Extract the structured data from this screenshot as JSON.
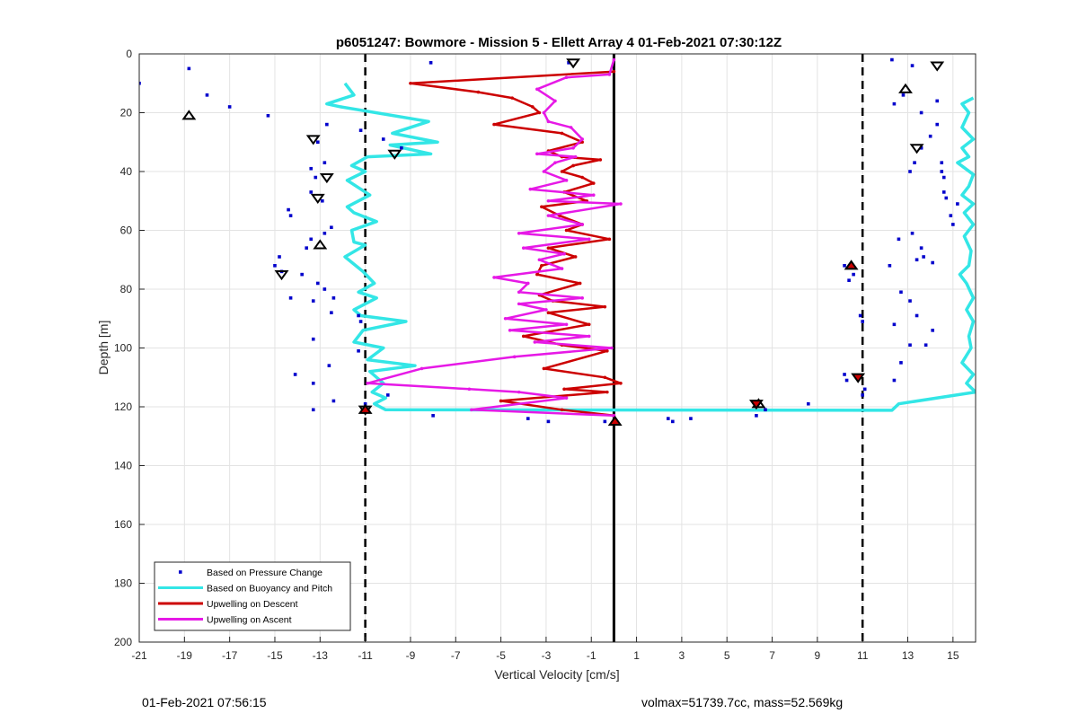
{
  "chart_data": {
    "type": "line",
    "title": "p6051247: Bowmore - Mission 5 - Ellett Array 4 01-Feb-2021 07:30:12Z",
    "xlabel": "Vertical Velocity [cm/s]",
    "ylabel": "Depth [m]",
    "xlim": [
      -21,
      16
    ],
    "ylim": [
      0,
      200
    ],
    "y_reversed": true,
    "grid": true,
    "xticks": [
      -21,
      -19,
      -17,
      -15,
      -13,
      -11,
      -9,
      -7,
      -5,
      -3,
      -1,
      1,
      3,
      5,
      7,
      9,
      11,
      13,
      15
    ],
    "yticks": [
      0,
      20,
      40,
      60,
      80,
      100,
      120,
      140,
      160,
      180,
      200
    ],
    "legend_position": "bottom-left",
    "reference_lines": [
      {
        "x": -11,
        "style": "dashed",
        "color": "#000000"
      },
      {
        "x": 0,
        "style": "solid",
        "color": "#000000"
      },
      {
        "x": 11,
        "style": "dashed",
        "color": "#000000"
      }
    ],
    "series": [
      {
        "name": "Based on Pressure Change",
        "kind": "scatter",
        "color": "#0000cc",
        "points": [
          [
            -21,
            10
          ],
          [
            -18.8,
            5
          ],
          [
            -18,
            14
          ],
          [
            -17,
            18
          ],
          [
            -15.3,
            21
          ],
          [
            -11.2,
            26
          ],
          [
            -10.2,
            29
          ],
          [
            -9.4,
            32
          ],
          [
            -12.7,
            24
          ],
          [
            -13.1,
            30
          ],
          [
            -12.8,
            37
          ],
          [
            -13.4,
            39
          ],
          [
            -13.2,
            42
          ],
          [
            -13.4,
            47
          ],
          [
            -12.9,
            50
          ],
          [
            -14.4,
            53
          ],
          [
            -14.3,
            55
          ],
          [
            -12.5,
            59
          ],
          [
            -12.8,
            61
          ],
          [
            -13.4,
            63
          ],
          [
            -13.6,
            66
          ],
          [
            -14.8,
            69
          ],
          [
            -15,
            72
          ],
          [
            -14.7,
            74
          ],
          [
            -13.8,
            75
          ],
          [
            -13.1,
            78
          ],
          [
            -12.8,
            80
          ],
          [
            -14.3,
            83
          ],
          [
            -12.4,
            83
          ],
          [
            -13.3,
            84
          ],
          [
            -12.5,
            88
          ],
          [
            -11.3,
            89
          ],
          [
            -11.2,
            91
          ],
          [
            -13.3,
            97
          ],
          [
            -11.3,
            101
          ],
          [
            -12.6,
            106
          ],
          [
            -13.3,
            112
          ],
          [
            -14.1,
            109
          ],
          [
            -10,
            116
          ],
          [
            -12.4,
            118
          ],
          [
            -13.3,
            121
          ],
          [
            -11,
            119
          ],
          [
            -8,
            123
          ],
          [
            -2.9,
            125
          ],
          [
            -3.8,
            124
          ],
          [
            -0.4,
            125
          ],
          [
            2.4,
            124
          ],
          [
            2.6,
            125
          ],
          [
            3.4,
            124
          ],
          [
            6.3,
            123
          ],
          [
            6.7,
            121
          ],
          [
            8.6,
            119
          ],
          [
            10.2,
            72
          ],
          [
            10.6,
            75
          ],
          [
            10.4,
            77
          ],
          [
            10.3,
            111
          ],
          [
            10.2,
            109
          ],
          [
            11,
            91
          ],
          [
            10.9,
            89
          ],
          [
            11.1,
            114
          ],
          [
            11,
            116
          ],
          [
            -8.1,
            3
          ],
          [
            -2,
            3
          ],
          [
            12.3,
            2
          ],
          [
            13.2,
            4
          ],
          [
            12.8,
            14
          ],
          [
            12.4,
            17
          ],
          [
            13.6,
            20
          ],
          [
            14.3,
            24
          ],
          [
            14,
            28
          ],
          [
            13.6,
            32
          ],
          [
            13.3,
            37
          ],
          [
            13.1,
            40
          ],
          [
            14.5,
            37
          ],
          [
            14.5,
            40
          ],
          [
            14.6,
            42
          ],
          [
            14.6,
            47
          ],
          [
            14.7,
            49
          ],
          [
            15.2,
            51
          ],
          [
            14.9,
            55
          ],
          [
            15,
            58
          ],
          [
            13.2,
            61
          ],
          [
            12.6,
            63
          ],
          [
            13.6,
            66
          ],
          [
            13.7,
            69
          ],
          [
            13.4,
            70
          ],
          [
            12.2,
            72
          ],
          [
            14.1,
            71
          ],
          [
            12.7,
            81
          ],
          [
            13.1,
            84
          ],
          [
            13.4,
            89
          ],
          [
            12.4,
            92
          ],
          [
            14.1,
            94
          ],
          [
            13.8,
            99
          ],
          [
            13.1,
            99
          ],
          [
            12.7,
            105
          ],
          [
            12.4,
            111
          ],
          [
            14.3,
            16
          ]
        ]
      },
      {
        "name": "Based on Buoyancy and Pitch",
        "kind": "line",
        "color": "#33e6e6",
        "points": [
          [
            -11.9,
            10
          ],
          [
            -11.5,
            14
          ],
          [
            -12.7,
            17
          ],
          [
            -12.1,
            18
          ],
          [
            -8.2,
            23
          ],
          [
            -9.8,
            27
          ],
          [
            -7.8,
            30
          ],
          [
            -9.9,
            31
          ],
          [
            -8.1,
            34
          ],
          [
            -10.9,
            35
          ],
          [
            -11.6,
            38
          ],
          [
            -11,
            40
          ],
          [
            -11.8,
            43
          ],
          [
            -10.8,
            48
          ],
          [
            -11.8,
            52
          ],
          [
            -11.5,
            54
          ],
          [
            -10.5,
            57
          ],
          [
            -11.6,
            60
          ],
          [
            -11.5,
            64
          ],
          [
            -11,
            65
          ],
          [
            -11.9,
            69
          ],
          [
            -11.1,
            74
          ],
          [
            -10.6,
            78
          ],
          [
            -11.3,
            81
          ],
          [
            -10.5,
            83
          ],
          [
            -11.5,
            87
          ],
          [
            -11.2,
            89
          ],
          [
            -9.2,
            91
          ],
          [
            -11.1,
            94
          ],
          [
            -11.5,
            98
          ],
          [
            -10.2,
            100
          ],
          [
            -10.9,
            104
          ],
          [
            -8.8,
            106
          ],
          [
            -10.8,
            108
          ],
          [
            -10.2,
            112
          ],
          [
            -10.7,
            115
          ],
          [
            -10.1,
            117
          ],
          [
            -10.6,
            119
          ],
          [
            -10.1,
            121
          ],
          [
            12.3,
            121.2
          ],
          [
            12.6,
            119
          ],
          [
            16,
            115
          ],
          [
            15.6,
            112
          ],
          [
            15.9,
            109
          ],
          [
            15.4,
            105
          ],
          [
            15.8,
            100
          ],
          [
            15.7,
            96
          ],
          [
            15.9,
            91
          ],
          [
            15.6,
            87
          ],
          [
            15.9,
            83
          ],
          [
            15.6,
            78
          ],
          [
            15.3,
            75
          ],
          [
            15.7,
            72
          ],
          [
            15.8,
            67
          ],
          [
            15.5,
            62
          ],
          [
            15.9,
            58
          ],
          [
            15.5,
            54
          ],
          [
            15.9,
            51
          ],
          [
            15.4,
            48
          ],
          [
            15.7,
            45
          ],
          [
            15.9,
            41
          ],
          [
            15.2,
            37
          ],
          [
            15.7,
            35
          ],
          [
            15.4,
            32
          ],
          [
            15.9,
            29
          ],
          [
            15.4,
            25
          ],
          [
            15.7,
            20
          ],
          [
            15.4,
            17
          ],
          [
            15.9,
            15
          ]
        ]
      },
      {
        "name": "Upwelling on Descent",
        "kind": "line",
        "color": "#cc0000",
        "points": [
          [
            0,
            6
          ],
          [
            -9,
            10
          ],
          [
            -6,
            13
          ],
          [
            -4.5,
            15
          ],
          [
            -3.6,
            18
          ],
          [
            -3.3,
            20
          ],
          [
            -5.3,
            24
          ],
          [
            -2.3,
            27
          ],
          [
            -1.4,
            30
          ],
          [
            -2.9,
            33
          ],
          [
            -2.3,
            35
          ],
          [
            -0.6,
            36
          ],
          [
            -1.8,
            38
          ],
          [
            -2.3,
            40
          ],
          [
            -1.4,
            42
          ],
          [
            -0.9,
            44
          ],
          [
            -2.2,
            47
          ],
          [
            -1.2,
            50
          ],
          [
            -3.2,
            52
          ],
          [
            -2.4,
            55
          ],
          [
            -1.4,
            58
          ],
          [
            -2.1,
            60
          ],
          [
            -0.2,
            63
          ],
          [
            -2.9,
            66
          ],
          [
            -1.7,
            69
          ],
          [
            -3.2,
            72
          ],
          [
            -3.4,
            75
          ],
          [
            -1.5,
            78
          ],
          [
            -3.3,
            82
          ],
          [
            -2.7,
            84
          ],
          [
            -0.4,
            86
          ],
          [
            -2.9,
            88
          ],
          [
            -1.1,
            92
          ],
          [
            -4,
            96
          ],
          [
            -2.3,
            99
          ],
          [
            -0.3,
            101
          ],
          [
            -3.1,
            107
          ],
          [
            -0.4,
            110
          ],
          [
            0.3,
            112
          ],
          [
            -2.2,
            114
          ],
          [
            -0.3,
            115
          ],
          [
            -5,
            118
          ],
          [
            -2.3,
            121
          ],
          [
            0,
            123
          ]
        ]
      },
      {
        "name": "Upwelling on Ascent",
        "kind": "line",
        "color": "#e619e6",
        "points": [
          [
            0,
            2
          ],
          [
            -0.2,
            7
          ],
          [
            -2.1,
            8
          ],
          [
            -3.4,
            12
          ],
          [
            -2.6,
            16
          ],
          [
            -3.1,
            20
          ],
          [
            -2.9,
            23
          ],
          [
            -1.9,
            25
          ],
          [
            -1.4,
            29
          ],
          [
            -1.8,
            32
          ],
          [
            -3.4,
            34
          ],
          [
            -1.7,
            35
          ],
          [
            -2.6,
            37
          ],
          [
            -3.1,
            40
          ],
          [
            -2.1,
            43
          ],
          [
            -3.7,
            46
          ],
          [
            -0.9,
            48
          ],
          [
            -2.9,
            50
          ],
          [
            0.3,
            51
          ],
          [
            -2.9,
            55
          ],
          [
            -1.4,
            58
          ],
          [
            -4.2,
            61
          ],
          [
            -1.1,
            63
          ],
          [
            -4,
            66
          ],
          [
            -2.2,
            68
          ],
          [
            -3.3,
            70
          ],
          [
            -2.3,
            73
          ],
          [
            -5.3,
            76
          ],
          [
            -3.8,
            78
          ],
          [
            -4.2,
            81
          ],
          [
            -1.4,
            83
          ],
          [
            -4.2,
            85
          ],
          [
            -3,
            87
          ],
          [
            -4.8,
            90
          ],
          [
            -2.1,
            92
          ],
          [
            -4.6,
            94
          ],
          [
            -1.1,
            96
          ],
          [
            -3.5,
            98
          ],
          [
            -0.1,
            100
          ],
          [
            -4.4,
            103
          ],
          [
            -8.5,
            107
          ],
          [
            -10.9,
            112
          ],
          [
            -6.4,
            114
          ],
          [
            -4.2,
            115
          ],
          [
            -2.1,
            117
          ],
          [
            -6.3,
            121
          ],
          [
            0,
            123
          ]
        ]
      }
    ],
    "markers": [
      {
        "kind": "down-triangle",
        "fill": "none",
        "points": [
          [
            -1.8,
            3
          ],
          [
            14.3,
            4
          ],
          [
            -13.3,
            29
          ],
          [
            -9.7,
            34
          ],
          [
            13.4,
            32
          ],
          [
            -12.7,
            42
          ],
          [
            -13.1,
            49
          ],
          [
            -14.7,
            75
          ],
          [
            -11,
            121
          ]
        ]
      },
      {
        "kind": "up-triangle",
        "fill": "none",
        "points": [
          [
            12.9,
            12
          ],
          [
            -18.8,
            21
          ],
          [
            -13,
            65
          ],
          [
            6.4,
            119
          ]
        ]
      },
      {
        "kind": "up-triangle",
        "fill": "#cc0000",
        "points": [
          [
            10.5,
            72
          ],
          [
            0.05,
            125
          ],
          [
            -11,
            121
          ]
        ]
      },
      {
        "kind": "down-triangle",
        "fill": "#cc0000",
        "points": [
          [
            10.8,
            110
          ],
          [
            6.3,
            119
          ]
        ]
      }
    ]
  },
  "footer": {
    "timestamp": "01-Feb-2021 07:56:15",
    "stats": "volmax=51739.7cc, mass=52.569kg"
  }
}
